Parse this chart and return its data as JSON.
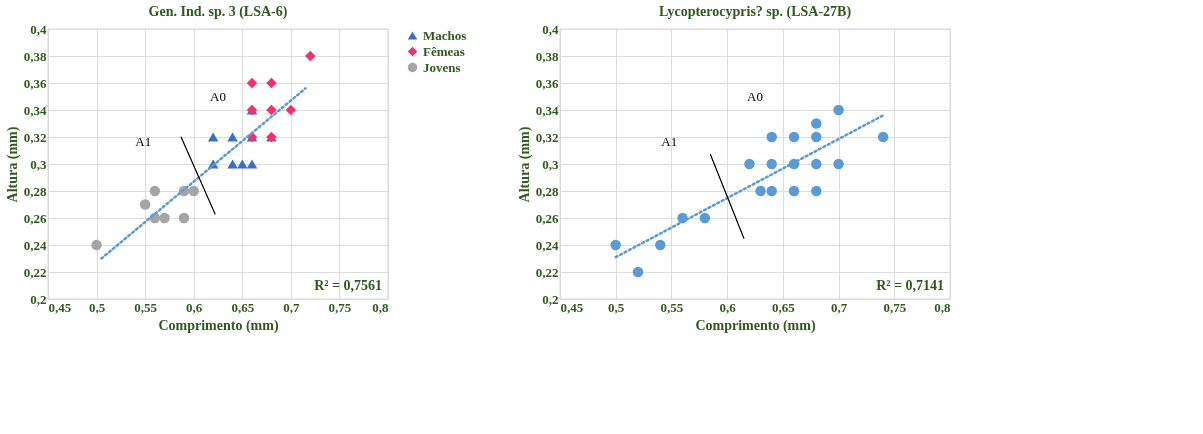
{
  "chart_data": [
    {
      "type": "scatter",
      "title": "Gen. Ind. sp. 3 (LSA-6)",
      "xlabel": "Comprimento (mm)",
      "ylabel": "Altura (mm)",
      "xlim": [
        0.45,
        0.8
      ],
      "ylim": [
        0.2,
        0.4
      ],
      "grid": true,
      "legend": "right",
      "xticks": [
        {
          "value": 0.45,
          "label": "0,45"
        },
        {
          "value": 0.5,
          "label": "0,5"
        },
        {
          "value": 0.55,
          "label": "0,55"
        },
        {
          "value": 0.6,
          "label": "0,6"
        },
        {
          "value": 0.65,
          "label": "0,65"
        },
        {
          "value": 0.7,
          "label": "0,7"
        },
        {
          "value": 0.75,
          "label": "0,75"
        },
        {
          "value": 0.8,
          "label": "0,8"
        }
      ],
      "yticks": [
        {
          "value": 0.2,
          "label": "0,2"
        },
        {
          "value": 0.22,
          "label": "0,22"
        },
        {
          "value": 0.24,
          "label": "0,24"
        },
        {
          "value": 0.26,
          "label": "0,26"
        },
        {
          "value": 0.28,
          "label": "0,28"
        },
        {
          "value": 0.3,
          "label": "0,3"
        },
        {
          "value": 0.32,
          "label": "0,32"
        },
        {
          "value": 0.34,
          "label": "0,34"
        },
        {
          "value": 0.36,
          "label": "0,36"
        },
        {
          "value": 0.38,
          "label": "0,38"
        },
        {
          "value": 0.4,
          "label": "0,4"
        }
      ],
      "series": [
        {
          "name": "Machos",
          "marker": "triangle",
          "color": "#3a6fc4",
          "x": [
            0.62,
            0.62,
            0.64,
            0.64,
            0.65,
            0.66,
            0.66,
            0.66,
            0.68
          ],
          "values": [
            0.32,
            0.3,
            0.32,
            0.3,
            0.3,
            0.3,
            0.34,
            0.32,
            0.32
          ]
        },
        {
          "name": "Fêmeas",
          "marker": "diamond",
          "color": "#f5306e",
          "x": [
            0.66,
            0.68,
            0.72,
            0.66,
            0.68,
            0.7,
            0.66,
            0.68
          ],
          "values": [
            0.36,
            0.36,
            0.38,
            0.34,
            0.34,
            0.34,
            0.32,
            0.32
          ]
        },
        {
          "name": "Jovens",
          "marker": "circle",
          "color": "#a5a5a5",
          "x": [
            0.5,
            0.55,
            0.56,
            0.56,
            0.57,
            0.59,
            0.59,
            0.6
          ],
          "values": [
            0.24,
            0.27,
            0.28,
            0.26,
            0.26,
            0.28,
            0.26,
            0.28
          ]
        },
        {
          "type": "line",
          "line_style": "dotted",
          "color": "#5b9bd5",
          "x": [
            0.505,
            0.715
          ],
          "values": [
            0.23,
            0.356
          ]
        },
        {
          "type": "line",
          "line_style": "solid",
          "color": "#000000",
          "x": [
            0.587,
            0.622
          ],
          "values": [
            0.32,
            0.263
          ]
        }
      ],
      "annotations": [
        "A0",
        "A1",
        "R² = 0,7561"
      ]
    },
    {
      "type": "scatter",
      "title": "Lycopterocypris? sp. (LSA-27B)",
      "xlabel": "Comprimento (mm)",
      "ylabel": "Altura (mm)",
      "xlim": [
        0.45,
        0.8
      ],
      "ylim": [
        0.2,
        0.4
      ],
      "grid": true,
      "xticks": [
        {
          "value": 0.45,
          "label": "0,45"
        },
        {
          "value": 0.5,
          "label": "0,5"
        },
        {
          "value": 0.55,
          "label": "0,55"
        },
        {
          "value": 0.6,
          "label": "0,6"
        },
        {
          "value": 0.65,
          "label": "0,65"
        },
        {
          "value": 0.7,
          "label": "0,7"
        },
        {
          "value": 0.75,
          "label": "0,75"
        },
        {
          "value": 0.8,
          "label": "0,8"
        }
      ],
      "yticks": [
        {
          "value": 0.2,
          "label": "0,2"
        },
        {
          "value": 0.22,
          "label": "0,22"
        },
        {
          "value": 0.24,
          "label": "0,24"
        },
        {
          "value": 0.26,
          "label": "0,26"
        },
        {
          "value": 0.28,
          "label": "0,28"
        },
        {
          "value": 0.3,
          "label": "0,3"
        },
        {
          "value": 0.32,
          "label": "0,32"
        },
        {
          "value": 0.34,
          "label": "0,34"
        },
        {
          "value": 0.36,
          "label": "0,36"
        },
        {
          "value": 0.38,
          "label": "0,38"
        },
        {
          "value": 0.4,
          "label": "0,4"
        }
      ],
      "series": [
        {
          "marker": "circle",
          "color": "#5b9bd5",
          "x": [
            0.5,
            0.52,
            0.54,
            0.56,
            0.58,
            0.62,
            0.63,
            0.64,
            0.64,
            0.64,
            0.66,
            0.66,
            0.66,
            0.68,
            0.68,
            0.68,
            0.68,
            0.7,
            0.7,
            0.74
          ],
          "values": [
            0.24,
            0.22,
            0.24,
            0.26,
            0.26,
            0.3,
            0.28,
            0.28,
            0.3,
            0.32,
            0.32,
            0.3,
            0.28,
            0.33,
            0.32,
            0.3,
            0.28,
            0.34,
            0.3,
            0.32
          ]
        },
        {
          "type": "line",
          "line_style": "dotted",
          "color": "#5b9bd5",
          "x": [
            0.5,
            0.74
          ],
          "values": [
            0.231,
            0.336
          ]
        },
        {
          "type": "line",
          "line_style": "solid",
          "color": "#000000",
          "x": [
            0.585,
            0.615
          ],
          "values": [
            0.307,
            0.245
          ]
        }
      ],
      "annotations": [
        "A0",
        "A1",
        "R² = 0,7141"
      ]
    }
  ]
}
